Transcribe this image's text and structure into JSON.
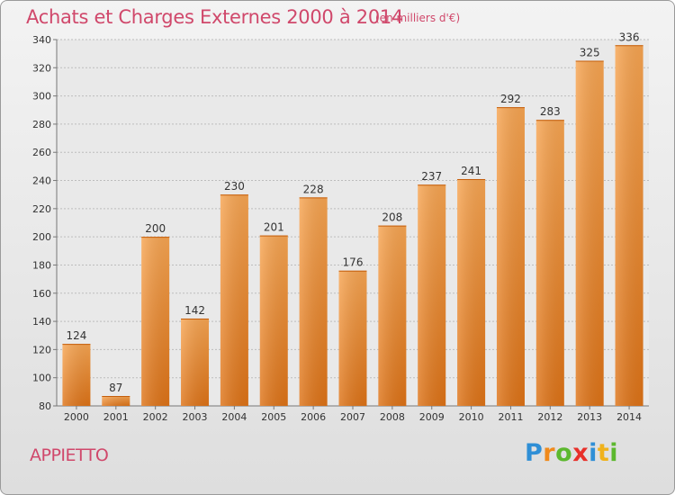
{
  "chart_data": {
    "type": "bar",
    "title": "Achats et Charges Externes 2000 à 2014",
    "subtitle": "(en milliers d'€)",
    "categories": [
      "2000",
      "2001",
      "2002",
      "2003",
      "2004",
      "2005",
      "2006",
      "2007",
      "2008",
      "2009",
      "2010",
      "2011",
      "2012",
      "2013",
      "2014"
    ],
    "values": [
      124,
      87,
      200,
      142,
      230,
      201,
      228,
      176,
      208,
      237,
      241,
      292,
      283,
      325,
      336
    ],
    "ylim": [
      80,
      340
    ],
    "yticks": [
      80,
      100,
      120,
      140,
      160,
      180,
      200,
      220,
      240,
      260,
      280,
      300,
      320,
      340
    ],
    "grid": true,
    "bar_color": "#f0923a"
  },
  "location": "APPIETTO",
  "logo": {
    "letters": [
      {
        "char": "P",
        "color": "#2f8fd6"
      },
      {
        "char": "r",
        "color": "#f08a1c"
      },
      {
        "char": "o",
        "color": "#5cb82e"
      },
      {
        "char": "x",
        "color": "#e8302a"
      },
      {
        "char": "i",
        "color": "#2f8fd6"
      },
      {
        "char": "t",
        "color": "#f0b21c"
      },
      {
        "char": "i",
        "color": "#5cb82e"
      }
    ]
  }
}
